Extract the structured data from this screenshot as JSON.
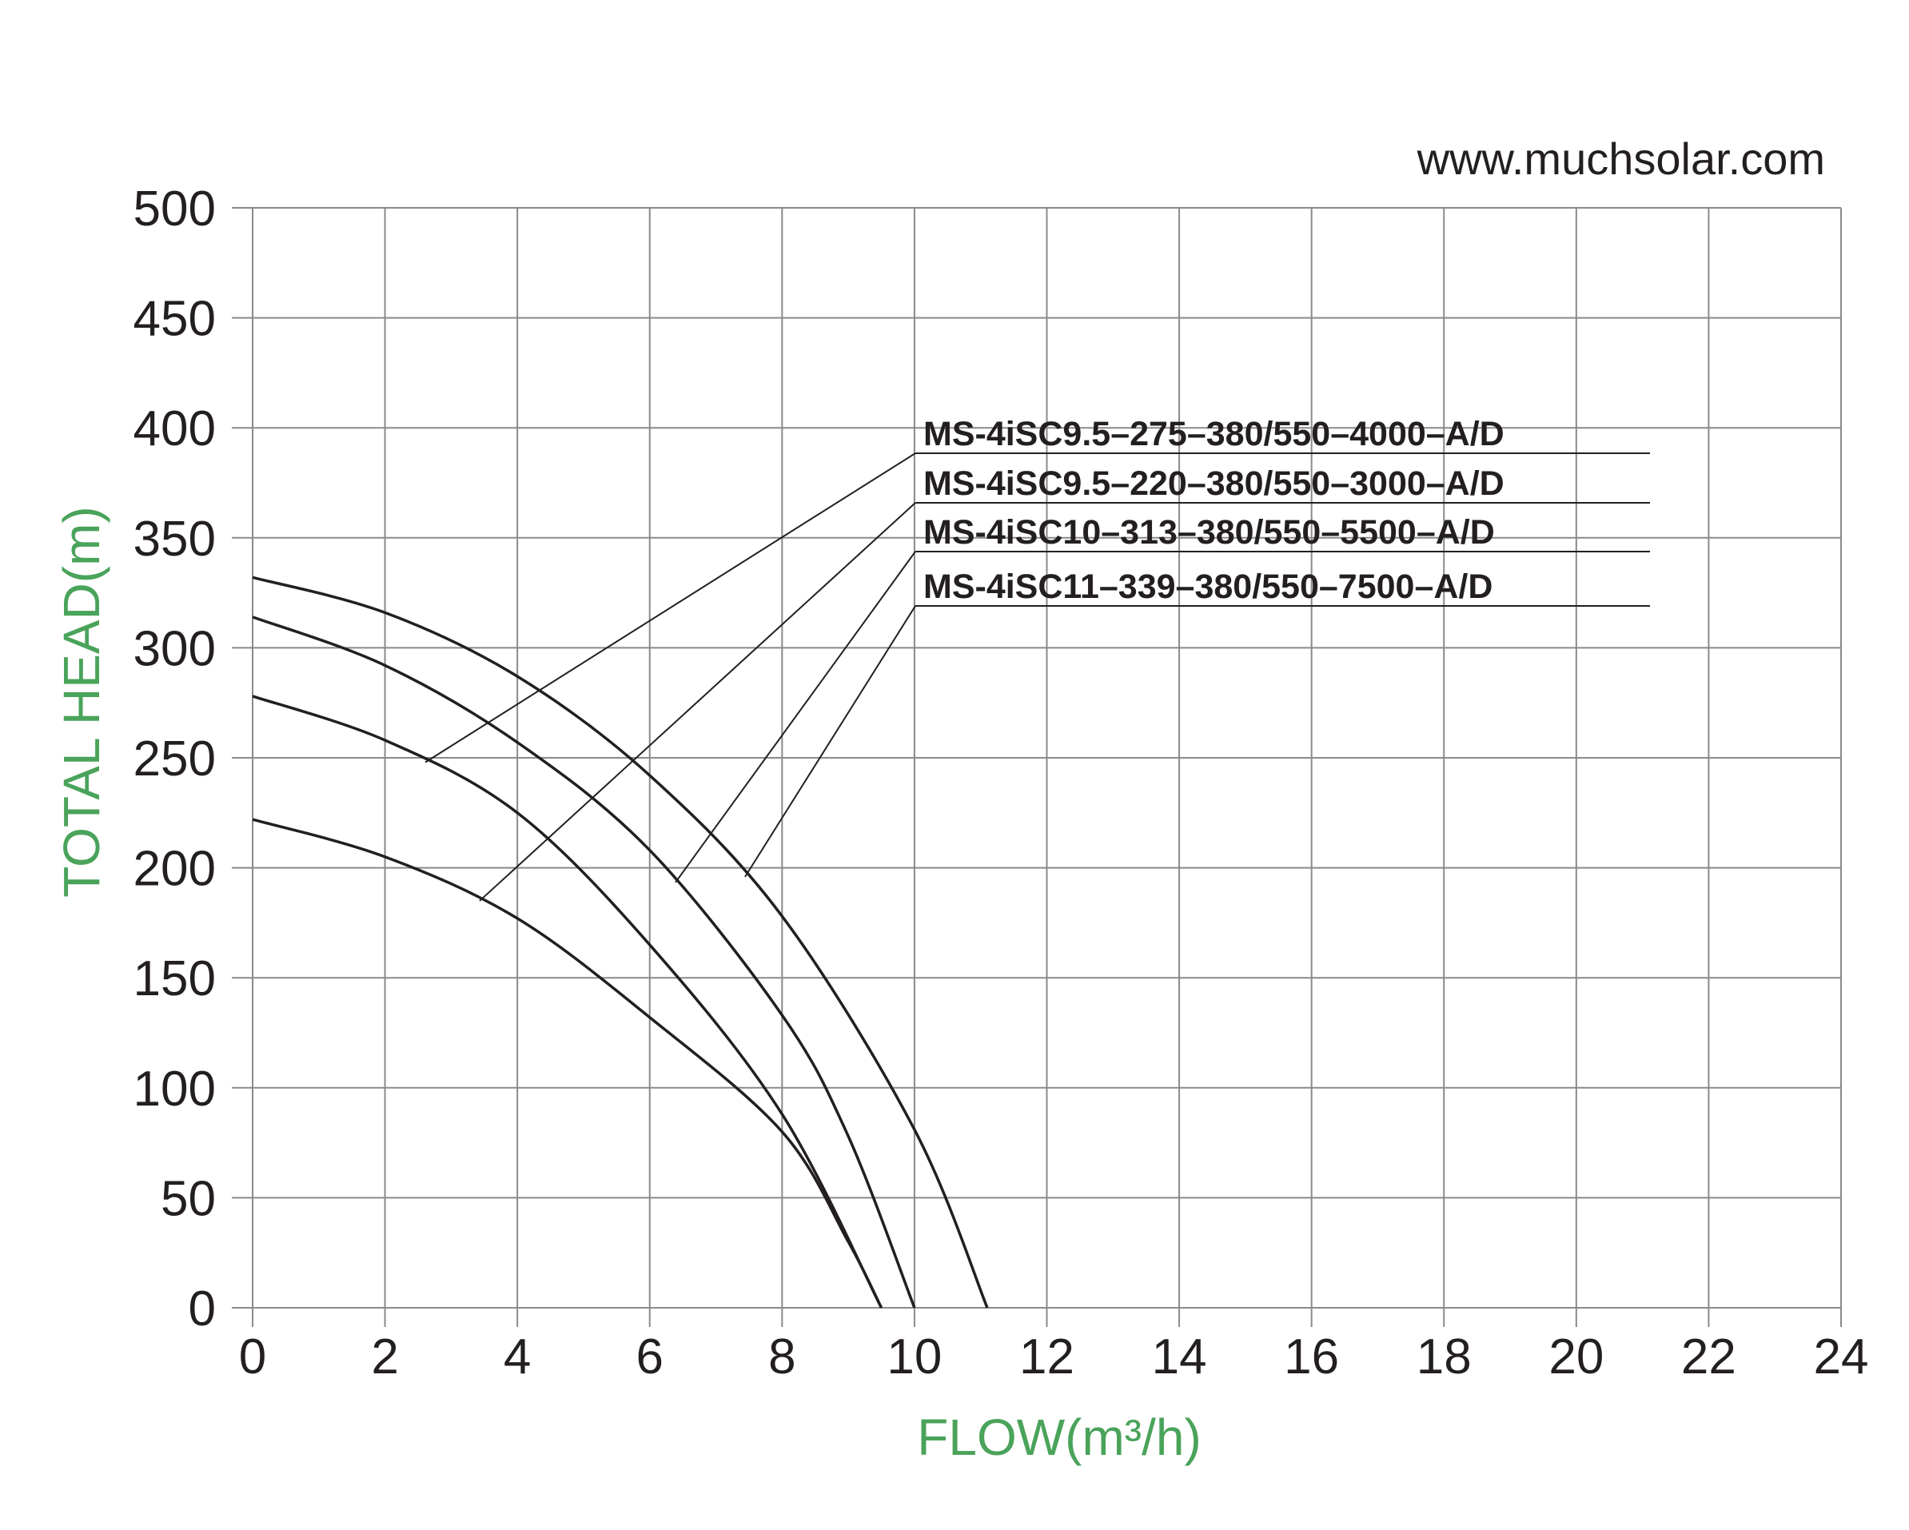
{
  "chart_data": {
    "type": "line",
    "title": "www.muchsolar.com",
    "x_label": "FLOW(m³/h)",
    "y_label": "TOTAL HEAD(m)",
    "xlim": [
      0,
      24
    ],
    "xticks": [
      0,
      2,
      4,
      6,
      8,
      10,
      12,
      14,
      16,
      18,
      20,
      22,
      24
    ],
    "ylim": [
      0,
      500
    ],
    "yticks": [
      0,
      50,
      100,
      150,
      200,
      250,
      300,
      350,
      400,
      450,
      500
    ],
    "grid": true,
    "series": [
      {
        "name": "MS-4iSC9.5–275–380/550–4000–A/D",
        "color": "#231f20",
        "x": [
          0,
          2,
          4,
          6,
          8,
          9.5
        ],
        "values": [
          278,
          258,
          225,
          165,
          88,
          0
        ]
      },
      {
        "name": "MS-4iSC9.5–220–380/550–3000–A/D",
        "color": "#231f20",
        "x": [
          0,
          2,
          4,
          6,
          8,
          9,
          9.5
        ],
        "values": [
          222,
          205,
          177,
          132,
          80,
          30,
          0
        ]
      },
      {
        "name": "MS-4iSC10–313–380/550–5500–A/D",
        "color": "#231f20",
        "x": [
          0,
          2,
          4,
          6,
          8,
          9,
          10
        ],
        "values": [
          314,
          292,
          257,
          208,
          133,
          78,
          0
        ]
      },
      {
        "name": "MS-4iSC11–339–380/550–7500–A/D",
        "color": "#231f20",
        "x": [
          0,
          2,
          4,
          6,
          8,
          10,
          11.1
        ],
        "values": [
          332,
          316,
          287,
          242,
          178,
          81,
          0
        ]
      }
    ]
  }
}
